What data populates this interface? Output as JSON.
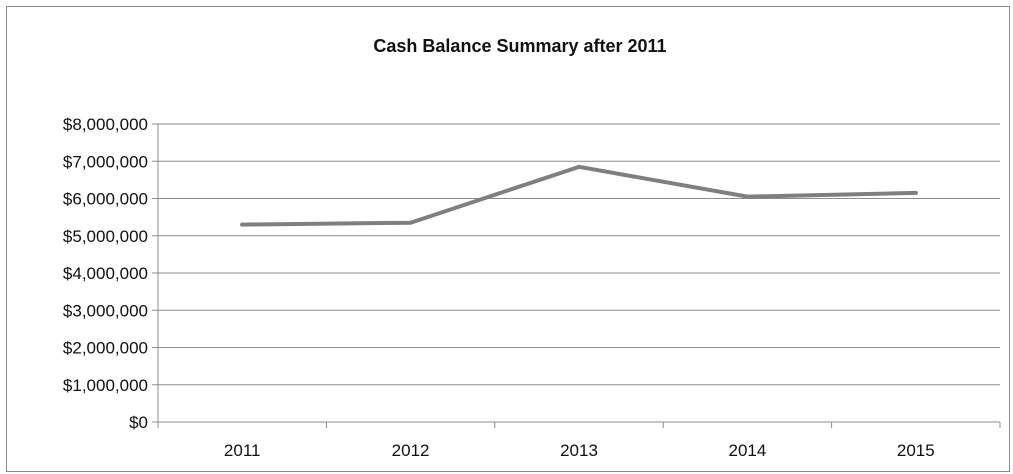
{
  "chart_data": {
    "type": "line",
    "title": "Cash Balance Summary after 2011",
    "xlabel": "",
    "ylabel": "",
    "categories": [
      "2011",
      "2012",
      "2013",
      "2014",
      "2015"
    ],
    "series": [
      {
        "values": [
          5300000,
          5350000,
          6850000,
          6050000,
          6150000
        ]
      }
    ],
    "ylim": [
      0,
      8000000
    ],
    "y_ticks": [
      0,
      1000000,
      2000000,
      3000000,
      4000000,
      5000000,
      6000000,
      7000000,
      8000000
    ],
    "y_tick_labels": [
      "$0",
      "$1,000,000",
      "$2,000,000",
      "$3,000,000",
      "$4,000,000",
      "$5,000,000",
      "$6,000,000",
      "$7,000,000",
      "$8,000,000"
    ],
    "grid": true,
    "legend": "none",
    "colors": {
      "line": "#7f7f7f",
      "grid": "#8c8c8c",
      "axis": "#8c8c8c"
    }
  }
}
